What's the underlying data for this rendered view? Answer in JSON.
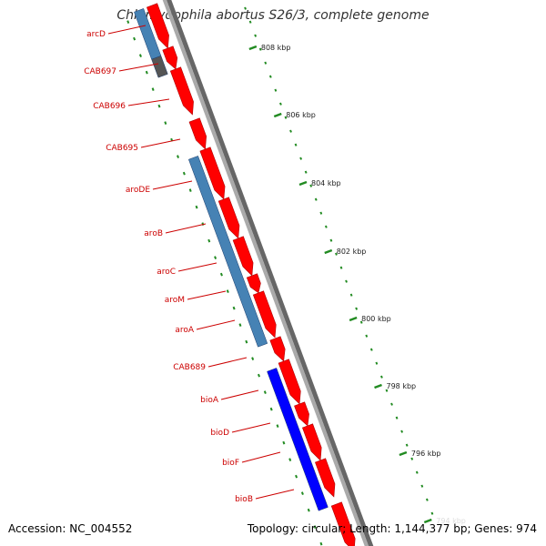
{
  "title": "Chlamydophila abortus S26/3, complete genome",
  "footer": {
    "accession": "Accession: NC_004552",
    "summary": "Topology: circular; Length: 1,144,377 bp; Genes: 974"
  },
  "colors": {
    "forward_cds": "#ff0000",
    "reverse_cds_light": "#4682b4",
    "reverse_cds_dark": "#0000ff",
    "unknown": "#555555",
    "backbone": "#888888",
    "ticks": "#228b22",
    "label": "#cc0000"
  },
  "kbp_labels": [
    "808 kbp",
    "806 kbp",
    "804 kbp",
    "802 kbp",
    "800 kbp",
    "798 kbp",
    "796 kbp",
    "794 kbp"
  ],
  "gene_labels": [
    "arcD",
    "CAB697",
    "CAB696",
    "CAB695",
    "aroDE",
    "aroB",
    "aroC",
    "aroM",
    "aroA",
    "CAB689",
    "bioA",
    "bioD",
    "bioF",
    "bioB"
  ]
}
